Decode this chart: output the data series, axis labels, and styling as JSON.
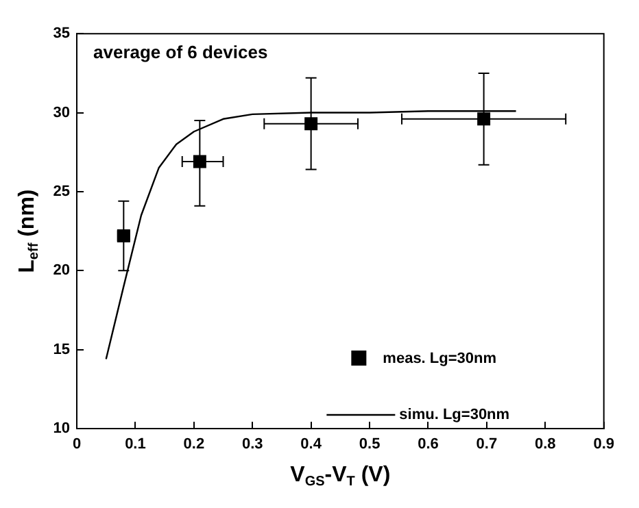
{
  "chart_data": {
    "type": "scatter",
    "xlabel": "V$_{GS}$-V$_{T}$ (V)",
    "ylabel": "L$_{eff}$ (nm)",
    "annotations": [
      "average of 6 devices"
    ],
    "xlim": [
      0,
      0.9
    ],
    "xticks": [
      0,
      0.1,
      0.2,
      0.3,
      0.4,
      0.5,
      0.6,
      0.7,
      0.8,
      0.9
    ],
    "ylim": [
      10,
      35
    ],
    "yticks": [
      10,
      15,
      20,
      25,
      30,
      35
    ],
    "legend": "bottom right",
    "series": [
      {
        "name": "meas. Lg=30nm",
        "marker": "square",
        "color": "#000000",
        "x": [
          0.08,
          0.21,
          0.4,
          0.695
        ],
        "values": [
          22.2,
          26.9,
          29.3,
          29.6
        ],
        "errors": [
          [
            20,
            24.4
          ],
          [
            24.1,
            29.5
          ],
          [
            26.4,
            32.2
          ],
          [
            26.7,
            32.5
          ]
        ],
        "xerrors": [
          [
            0.07,
            0.09
          ],
          [
            0.18,
            0.25
          ],
          [
            0.32,
            0.48
          ],
          [
            0.555,
            0.835
          ]
        ]
      },
      {
        "name": "simu. Lg=30nm",
        "type": "line",
        "marker": "none",
        "line_style": "solid",
        "color": "#000000",
        "x": [
          0.05,
          0.08,
          0.11,
          0.14,
          0.17,
          0.2,
          0.25,
          0.3,
          0.4,
          0.5,
          0.6,
          0.75
        ],
        "values": [
          14.4,
          19,
          23.5,
          26.5,
          28,
          28.8,
          29.6,
          29.9,
          30,
          30,
          30.1,
          30.1
        ]
      }
    ]
  }
}
